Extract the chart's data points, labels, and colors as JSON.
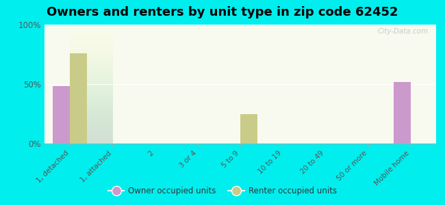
{
  "title": "Owners and renters by unit type in zip code 62452",
  "categories": [
    "1, detached",
    "1, attached",
    "2",
    "3 or 4",
    "5 to 9",
    "10 to 19",
    "20 to 49",
    "50 or more",
    "Mobile home"
  ],
  "owner_values": [
    48,
    0,
    0,
    0,
    0,
    0,
    0,
    0,
    52
  ],
  "renter_values": [
    76,
    0,
    0,
    0,
    25,
    0,
    0,
    0,
    0
  ],
  "owner_color": "#cc99cc",
  "renter_color": "#c8cc88",
  "background_color": "#00eeee",
  "plot_bg_top": "#e8f0d8",
  "plot_bg_bottom": "#f8faf0",
  "ylim": [
    0,
    100
  ],
  "yticks": [
    0,
    50,
    100
  ],
  "ytick_labels": [
    "0%",
    "50%",
    "100%"
  ],
  "bar_width": 0.4,
  "legend_owner": "Owner occupied units",
  "legend_renter": "Renter occupied units",
  "title_fontsize": 13,
  "watermark": "City-Data.com"
}
